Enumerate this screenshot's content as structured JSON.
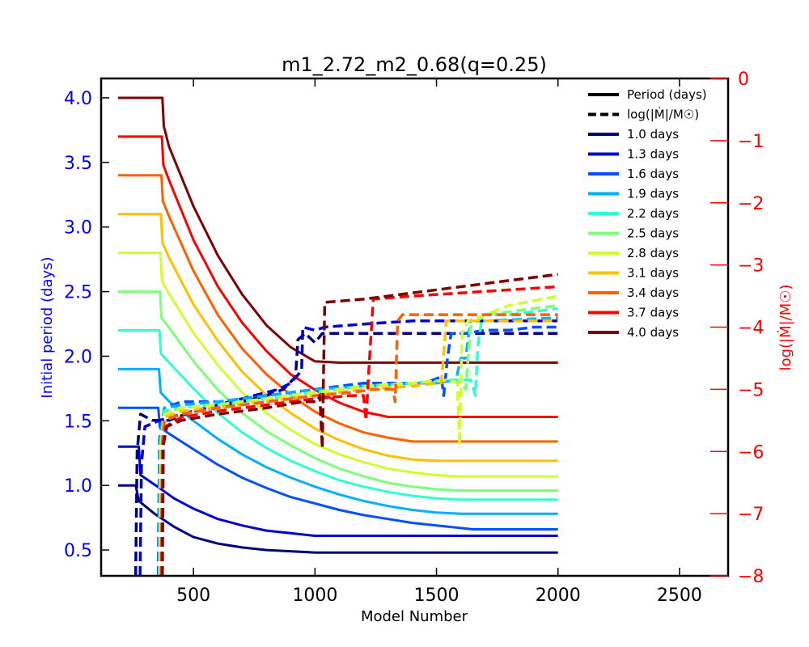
{
  "chart_data": {
    "type": "line",
    "title": "m1_2.72_m2_0.68(q=0.25)",
    "xlabel": "Model Number",
    "ylabel_left": "Initial period (days)",
    "ylabel_right": "log(|Ṁ|/M☉)",
    "xlim": [
      120,
      2700
    ],
    "ylim_left": [
      0.3,
      4.15
    ],
    "ylim_right": [
      -8,
      0
    ],
    "xticks": [
      500,
      1000,
      1500,
      2000,
      2500
    ],
    "yticks_left": [
      0.5,
      1.0,
      1.5,
      2.0,
      2.5,
      3.0,
      3.5,
      4.0
    ],
    "yticks_left_labels": [
      "0.5",
      "1.0",
      "1.5",
      "2.0",
      "2.5",
      "3.0",
      "3.5",
      "4.0"
    ],
    "yticks_right": [
      -8,
      -7,
      -6,
      -5,
      -4,
      -3,
      -2,
      -1,
      0
    ],
    "yticks_right_labels": [
      "−8",
      "−7",
      "−6",
      "−5",
      "−4",
      "−3",
      "−2",
      "−1",
      "0"
    ],
    "left_axis_color": "#0000ff",
    "right_axis_color": "#ff0000",
    "legend": {
      "position": "top-right",
      "style_entries": [
        {
          "label": "Period (days)",
          "style": "solid"
        },
        {
          "label": "log(|Ṁ|/M☉)",
          "style": "dashed"
        }
      ]
    },
    "series": [
      {
        "name": "1.0 days",
        "color": "#00007f",
        "period": {
          "x": [
            190,
            262,
            275,
            340,
            420,
            500,
            600,
            700,
            800,
            900,
            1000,
            2000
          ],
          "y": [
            1.0,
            1.0,
            0.88,
            0.78,
            0.68,
            0.6,
            0.55,
            0.52,
            0.5,
            0.49,
            0.48,
            0.48
          ]
        },
        "mdot": {
          "x": [
            262,
            268,
            282,
            330,
            400,
            500,
            600,
            700,
            800,
            870,
            920,
            930,
            960,
            1000,
            1030,
            1100,
            1200,
            1400,
            1600,
            1800,
            2000
          ],
          "y": [
            -8,
            -6,
            -5.4,
            -5.5,
            -5.5,
            -5.35,
            -5.3,
            -5.2,
            -5.1,
            -5.0,
            -4.8,
            -4.2,
            -4.1,
            -4.25,
            -4.1,
            -4.1,
            -4.1,
            -4.1,
            -4.1,
            -4.1,
            -4.1
          ]
        }
      },
      {
        "name": "1.3 days",
        "color": "#0000d0",
        "period": {
          "x": [
            190,
            275,
            282,
            345,
            420,
            500,
            600,
            700,
            800,
            900,
            1000,
            1100,
            2000
          ],
          "y": [
            1.3,
            1.3,
            1.08,
            1.0,
            0.9,
            0.82,
            0.74,
            0.69,
            0.65,
            0.63,
            0.61,
            0.61,
            0.61
          ]
        },
        "mdot": {
          "x": [
            280,
            286,
            300,
            360,
            450,
            550,
            650,
            750,
            850,
            900,
            945,
            950,
            1000,
            1040,
            1200,
            1400,
            1600,
            1800,
            2000
          ],
          "y": [
            -8,
            -6.2,
            -5.6,
            -5.5,
            -5.4,
            -5.3,
            -5.2,
            -5.1,
            -5.0,
            -4.9,
            -4.7,
            -4.0,
            -4.05,
            -4.0,
            -3.95,
            -3.9,
            -3.9,
            -3.9,
            -3.9
          ]
        }
      },
      {
        "name": "1.6 days",
        "color": "#0050ff",
        "period": {
          "x": [
            190,
            355,
            362,
            400,
            500,
            600,
            700,
            800,
            900,
            1000,
            1100,
            1200,
            1300,
            1400,
            1500,
            1600,
            1650,
            2000
          ],
          "y": [
            1.6,
            1.6,
            1.45,
            1.4,
            1.28,
            1.16,
            1.06,
            0.98,
            0.91,
            0.86,
            0.81,
            0.77,
            0.74,
            0.71,
            0.69,
            0.67,
            0.66,
            0.66
          ]
        },
        "mdot": {
          "x": [
            355,
            360,
            380,
            450,
            600,
            800,
            1000,
            1200,
            1350,
            1450,
            1520,
            1530,
            1545,
            1560,
            1620,
            1700,
            1800,
            1900,
            2000
          ],
          "y": [
            -8,
            -5.8,
            -5.3,
            -5.2,
            -5.2,
            -5.1,
            -5.0,
            -4.9,
            -4.9,
            -4.9,
            -4.8,
            -5.1,
            -4.5,
            -4.1,
            -4.1,
            -4.05,
            -4.05,
            -4.0,
            -4.0
          ]
        }
      },
      {
        "name": "1.9 days",
        "color": "#00b0ff",
        "period": {
          "x": [
            190,
            358,
            365,
            400,
            500,
            600,
            700,
            800,
            900,
            1000,
            1100,
            1200,
            1300,
            1400,
            1500,
            1600,
            1650,
            2000
          ],
          "y": [
            1.9,
            1.9,
            1.72,
            1.65,
            1.5,
            1.36,
            1.24,
            1.14,
            1.06,
            0.99,
            0.93,
            0.88,
            0.84,
            0.81,
            0.79,
            0.78,
            0.78,
            0.78
          ]
        },
        "mdot": {
          "x": [
            358,
            362,
            380,
            450,
            600,
            800,
            1000,
            1200,
            1400,
            1500,
            1580,
            1600,
            1620,
            1640,
            1700,
            2000
          ],
          "y": [
            -8,
            -5.8,
            -5.3,
            -5.25,
            -5.2,
            -5.1,
            -5.0,
            -4.95,
            -4.9,
            -4.9,
            -4.85,
            -4.5,
            -4.5,
            -3.9,
            -3.9,
            -3.85
          ]
        }
      },
      {
        "name": "2.2 days",
        "color": "#30ffd0",
        "period": {
          "x": [
            190,
            360,
            366,
            400,
            500,
            600,
            700,
            800,
            900,
            1000,
            1100,
            1200,
            1300,
            1400,
            1500,
            1600,
            1700,
            2000
          ],
          "y": [
            2.2,
            2.2,
            2.02,
            1.95,
            1.75,
            1.56,
            1.41,
            1.29,
            1.19,
            1.11,
            1.04,
            0.99,
            0.95,
            0.92,
            0.9,
            0.89,
            0.89,
            0.89
          ]
        },
        "mdot": {
          "x": [
            360,
            364,
            380,
            450,
            600,
            800,
            1000,
            1200,
            1400,
            1550,
            1640,
            1660,
            1670,
            1690,
            1800,
            2000
          ],
          "y": [
            -8,
            -5.9,
            -5.35,
            -5.3,
            -5.25,
            -5.15,
            -5.05,
            -4.95,
            -4.9,
            -4.85,
            -4.85,
            -5.1,
            -4.3,
            -3.8,
            -3.8,
            -3.7
          ]
        }
      },
      {
        "name": "2.5 days",
        "color": "#7dff7a",
        "period": {
          "x": [
            190,
            362,
            368,
            400,
            500,
            600,
            700,
            800,
            900,
            1000,
            1100,
            1200,
            1300,
            1400,
            1500,
            1600,
            2000
          ],
          "y": [
            2.5,
            2.5,
            2.3,
            2.22,
            1.96,
            1.74,
            1.56,
            1.42,
            1.31,
            1.21,
            1.13,
            1.07,
            1.02,
            0.99,
            0.97,
            0.96,
            0.96
          ]
        },
        "mdot": {
          "x": [
            362,
            366,
            380,
            450,
            600,
            800,
            1000,
            1200,
            1400,
            1550,
            1600,
            1620,
            1640,
            1700,
            1800,
            2000
          ],
          "y": [
            -8,
            -5.9,
            -5.4,
            -5.3,
            -5.25,
            -5.15,
            -5.05,
            -4.95,
            -4.9,
            -4.85,
            -4.9,
            -5.0,
            -4.0,
            -3.8,
            -3.75,
            -3.65
          ]
        }
      },
      {
        "name": "2.8 days",
        "color": "#d0ff30",
        "period": {
          "x": [
            190,
            364,
            370,
            400,
            500,
            600,
            700,
            800,
            900,
            1000,
            1100,
            1200,
            1300,
            1400,
            1500,
            1580,
            2000
          ],
          "y": [
            2.8,
            2.8,
            2.58,
            2.48,
            2.18,
            1.93,
            1.72,
            1.56,
            1.43,
            1.32,
            1.24,
            1.18,
            1.13,
            1.1,
            1.08,
            1.07,
            1.07
          ]
        },
        "mdot": {
          "x": [
            364,
            368,
            380,
            450,
            600,
            800,
            1000,
            1200,
            1400,
            1550,
            1585,
            1595,
            1605,
            1630,
            1700,
            1800,
            2000
          ],
          "y": [
            -8,
            -5.9,
            -5.4,
            -5.3,
            -5.25,
            -5.15,
            -5.05,
            -4.95,
            -4.9,
            -4.85,
            -4.9,
            -5.9,
            -4.1,
            -3.9,
            -3.8,
            -3.65,
            -3.5
          ]
        }
      },
      {
        "name": "3.1 days",
        "color": "#ffc000",
        "period": {
          "x": [
            190,
            366,
            372,
            400,
            500,
            600,
            700,
            800,
            900,
            1000,
            1100,
            1200,
            1300,
            1400,
            1500,
            2000
          ],
          "y": [
            3.1,
            3.1,
            2.88,
            2.76,
            2.4,
            2.12,
            1.88,
            1.7,
            1.56,
            1.44,
            1.35,
            1.28,
            1.23,
            1.2,
            1.19,
            1.19
          ]
        },
        "mdot": {
          "x": [
            366,
            370,
            380,
            450,
            600,
            800,
            1000,
            1200,
            1400,
            1500,
            1520,
            1540,
            1560,
            1700,
            2000
          ],
          "y": [
            -8,
            -5.9,
            -5.45,
            -5.35,
            -5.3,
            -5.2,
            -5.1,
            -5.0,
            -4.95,
            -4.9,
            -4.9,
            -3.9,
            -3.9,
            -3.9,
            -3.9
          ]
        }
      },
      {
        "name": "3.4 days",
        "color": "#ff6000",
        "period": {
          "x": [
            190,
            368,
            374,
            400,
            500,
            600,
            700,
            800,
            900,
            1000,
            1100,
            1200,
            1300,
            1400,
            2000
          ],
          "y": [
            3.4,
            3.4,
            3.2,
            3.08,
            2.66,
            2.32,
            2.06,
            1.86,
            1.7,
            1.57,
            1.48,
            1.41,
            1.37,
            1.34,
            1.34
          ]
        },
        "mdot": {
          "x": [
            368,
            372,
            380,
            450,
            600,
            800,
            1000,
            1150,
            1250,
            1320,
            1330,
            1340,
            1360,
            1500,
            2000
          ],
          "y": [
            -8,
            -5.9,
            -5.5,
            -5.4,
            -5.3,
            -5.2,
            -5.1,
            -5.05,
            -5.0,
            -5.0,
            -5.2,
            -3.9,
            -3.8,
            -3.8,
            -3.8
          ]
        }
      },
      {
        "name": "3.7 days",
        "color": "#ff0000",
        "period": {
          "x": [
            190,
            370,
            376,
            400,
            500,
            600,
            700,
            800,
            900,
            1000,
            1100,
            1200,
            1300,
            2000
          ],
          "y": [
            3.7,
            3.7,
            3.48,
            3.36,
            2.9,
            2.54,
            2.26,
            2.04,
            1.86,
            1.74,
            1.64,
            1.57,
            1.53,
            1.53
          ]
        },
        "mdot": {
          "x": [
            370,
            374,
            385,
            450,
            600,
            800,
            1000,
            1150,
            1200,
            1210,
            1220,
            1240,
            1400,
            1600,
            1800,
            2000
          ],
          "y": [
            -8,
            -5.9,
            -5.6,
            -5.45,
            -5.35,
            -5.25,
            -5.15,
            -5.1,
            -5.1,
            -5.5,
            -4.8,
            -3.55,
            -3.5,
            -3.45,
            -3.4,
            -3.35
          ]
        }
      },
      {
        "name": "4.0 days",
        "color": "#7f0000",
        "period": {
          "x": [
            190,
            372,
            378,
            400,
            500,
            600,
            700,
            800,
            900,
            1000,
            1100,
            2000
          ],
          "y": [
            4.0,
            4.0,
            3.78,
            3.62,
            3.16,
            2.78,
            2.48,
            2.24,
            2.07,
            1.96,
            1.95,
            1.95
          ]
        },
        "mdot": {
          "x": [
            372,
            376,
            390,
            450,
            600,
            800,
            950,
            1010,
            1020,
            1030,
            1040,
            1200,
            1400,
            1600,
            1800,
            2000
          ],
          "y": [
            -8,
            -5.9,
            -5.6,
            -5.5,
            -5.4,
            -5.3,
            -5.2,
            -5.2,
            -5.1,
            -5.95,
            -3.6,
            -3.55,
            -3.45,
            -3.35,
            -3.25,
            -3.15
          ]
        }
      }
    ]
  }
}
